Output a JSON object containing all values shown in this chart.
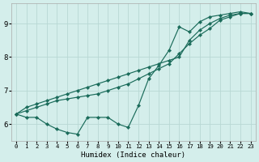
{
  "xlabel": "Humidex (Indice chaleur)",
  "bg_color": "#d4eeeb",
  "grid_color": "#b8d8d4",
  "line_color": "#1a6b5a",
  "xlim": [
    -0.5,
    23.5
  ],
  "ylim": [
    5.5,
    9.6
  ],
  "yticks": [
    6,
    7,
    8,
    9
  ],
  "xticks": [
    0,
    1,
    2,
    3,
    4,
    5,
    6,
    7,
    8,
    9,
    10,
    11,
    12,
    13,
    14,
    15,
    16,
    17,
    18,
    19,
    20,
    21,
    22,
    23
  ],
  "line1_x": [
    0,
    1,
    2,
    3,
    4,
    5,
    6,
    7,
    8,
    9,
    10,
    11,
    12,
    13,
    14,
    15,
    16,
    17,
    18,
    19,
    20,
    21,
    22,
    23
  ],
  "line1_y": [
    6.3,
    6.5,
    6.6,
    6.7,
    6.8,
    6.9,
    7.0,
    7.1,
    7.2,
    7.3,
    7.4,
    7.5,
    7.6,
    7.7,
    7.8,
    7.9,
    8.0,
    8.5,
    8.8,
    9.0,
    9.15,
    9.25,
    9.3,
    9.3
  ],
  "line2_x": [
    0,
    1,
    2,
    3,
    4,
    5,
    6,
    7,
    8,
    9,
    10,
    11,
    12,
    13,
    14,
    15,
    16,
    17,
    18,
    19,
    20,
    21,
    22,
    23
  ],
  "line2_y": [
    6.3,
    6.4,
    6.5,
    6.6,
    6.7,
    6.75,
    6.8,
    6.85,
    6.9,
    7.0,
    7.1,
    7.2,
    7.35,
    7.5,
    7.65,
    7.8,
    8.1,
    8.4,
    8.65,
    8.85,
    9.1,
    9.2,
    9.3,
    9.3
  ],
  "line3_x": [
    0,
    1,
    2,
    3,
    4,
    5,
    6,
    7,
    8,
    9,
    10,
    11,
    12,
    13,
    14,
    15,
    16,
    17,
    18,
    19,
    20,
    21,
    22,
    23
  ],
  "line3_y": [
    6.3,
    6.2,
    6.2,
    6.0,
    5.85,
    5.75,
    5.7,
    6.2,
    6.2,
    6.2,
    6.0,
    5.9,
    6.55,
    7.35,
    7.75,
    8.2,
    8.9,
    8.75,
    9.05,
    9.2,
    9.25,
    9.3,
    9.35,
    9.3
  ]
}
